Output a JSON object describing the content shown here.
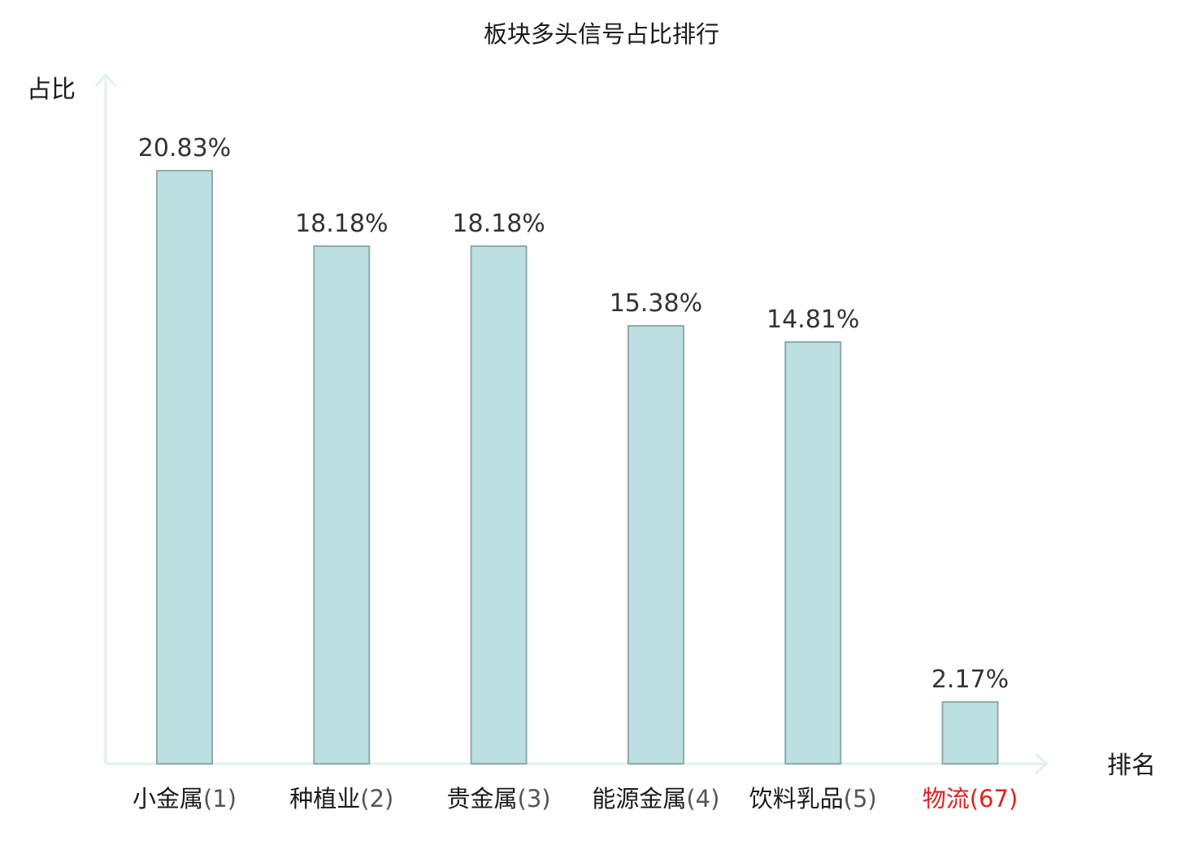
{
  "chart_data": {
    "type": "bar",
    "title": "板块多头信号占比排行",
    "ylabel": "占比",
    "xlabel": "排名",
    "categories": [
      {
        "name": "小金属",
        "rank": "(1)",
        "highlight": false
      },
      {
        "name": "种植业",
        "rank": "(2)",
        "highlight": false
      },
      {
        "name": "贵金属",
        "rank": "(3)",
        "highlight": false
      },
      {
        "name": "能源金属",
        "rank": "(4)",
        "highlight": false
      },
      {
        "name": "饮料乳品",
        "rank": "(5)",
        "highlight": false
      },
      {
        "name": "物流",
        "rank": "(67)",
        "highlight": true
      }
    ],
    "values": [
      20.83,
      18.18,
      18.18,
      15.38,
      14.81,
      2.17
    ],
    "value_labels": [
      "20.83%",
      "18.18%",
      "18.18%",
      "15.38%",
      "14.81%",
      "2.17%"
    ],
    "ylim": [
      0,
      24.2
    ],
    "grid": false,
    "legend": "none",
    "colors": {
      "bar_fill": "#bce0e2",
      "bar_stroke": "#8fa9ab",
      "axis": "#e1f2ef",
      "text": "#1a1a1a",
      "rank_text": "#555555",
      "highlight": "#e02020"
    }
  }
}
